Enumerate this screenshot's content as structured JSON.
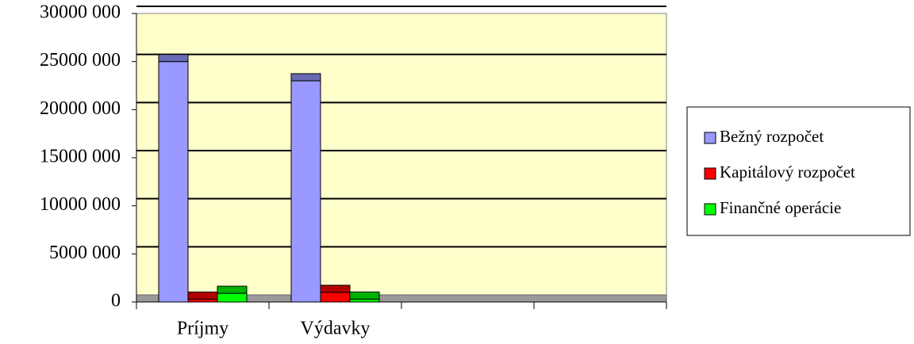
{
  "chart_data": {
    "type": "bar",
    "categories": [
      "Príjmy",
      "Výdavky",
      null,
      null
    ],
    "series": [
      {
        "name": "Bežný rozpočet",
        "color": "#9999ff",
        "values": [
          25000000,
          23000000,
          null,
          null
        ]
      },
      {
        "name": "Kapitálový rozpočet",
        "color": "#ff0000",
        "values": [
          300000,
          1000000,
          null,
          null
        ]
      },
      {
        "name": "Finančné operácie",
        "color": "#00ff00",
        "values": [
          900000,
          300000,
          null,
          null
        ]
      }
    ],
    "ylim": [
      0,
      30000000
    ],
    "yticks": [
      0,
      {
        "value": 5000000,
        "label": "5000 000"
      },
      {
        "value": 10000000,
        "label": "10000 000"
      },
      {
        "value": 15000000,
        "label": "15000 000"
      },
      {
        "value": 20000000,
        "label": "20000 000"
      },
      {
        "value": 25000000,
        "label": "25000 000"
      },
      {
        "value": 30000000,
        "label": "30000 000"
      }
    ],
    "grid": true,
    "legend": "right"
  }
}
